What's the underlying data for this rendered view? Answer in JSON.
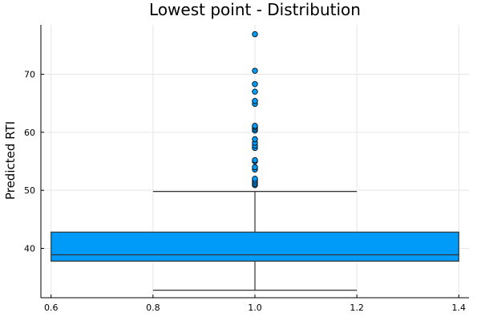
{
  "chart_data": {
    "type": "box",
    "title": "Lowest point - Distribution",
    "xlabel": "",
    "ylabel": "Predicted RTI",
    "xlim": [
      0.58,
      1.42
    ],
    "ylim": [
      31.5,
      78.5
    ],
    "x_ticks": [
      0.6,
      0.8,
      1.0,
      1.2,
      1.4
    ],
    "x_tick_labels": [
      "0.6",
      "0.8",
      "1.0",
      "1.2",
      "1.4"
    ],
    "y_ticks": [
      40,
      50,
      60,
      70
    ],
    "y_tick_labels": [
      "40",
      "50",
      "60",
      "70"
    ],
    "grid": true,
    "legend": "none",
    "box": {
      "x_center": 1.0,
      "box_left": 0.6,
      "box_right": 1.4,
      "whisker_cap_left": 0.8,
      "whisker_cap_right": 1.2,
      "q1": 37.8,
      "median": 38.9,
      "q3": 42.8,
      "whisker_low": 32.8,
      "whisker_high": 49.8,
      "fill_color": "#009af9",
      "outline_color": "#333333"
    },
    "outliers": {
      "x": 1.0,
      "values": [
        50.9,
        51.1,
        51.4,
        51.7,
        52.0,
        53.6,
        54.0,
        55.0,
        55.2,
        57.3,
        57.7,
        58.2,
        58.8,
        60.3,
        60.6,
        60.9,
        61.1,
        64.9,
        65.4,
        67.0,
        68.3,
        70.6,
        76.9
      ],
      "color": "#009af9"
    }
  }
}
